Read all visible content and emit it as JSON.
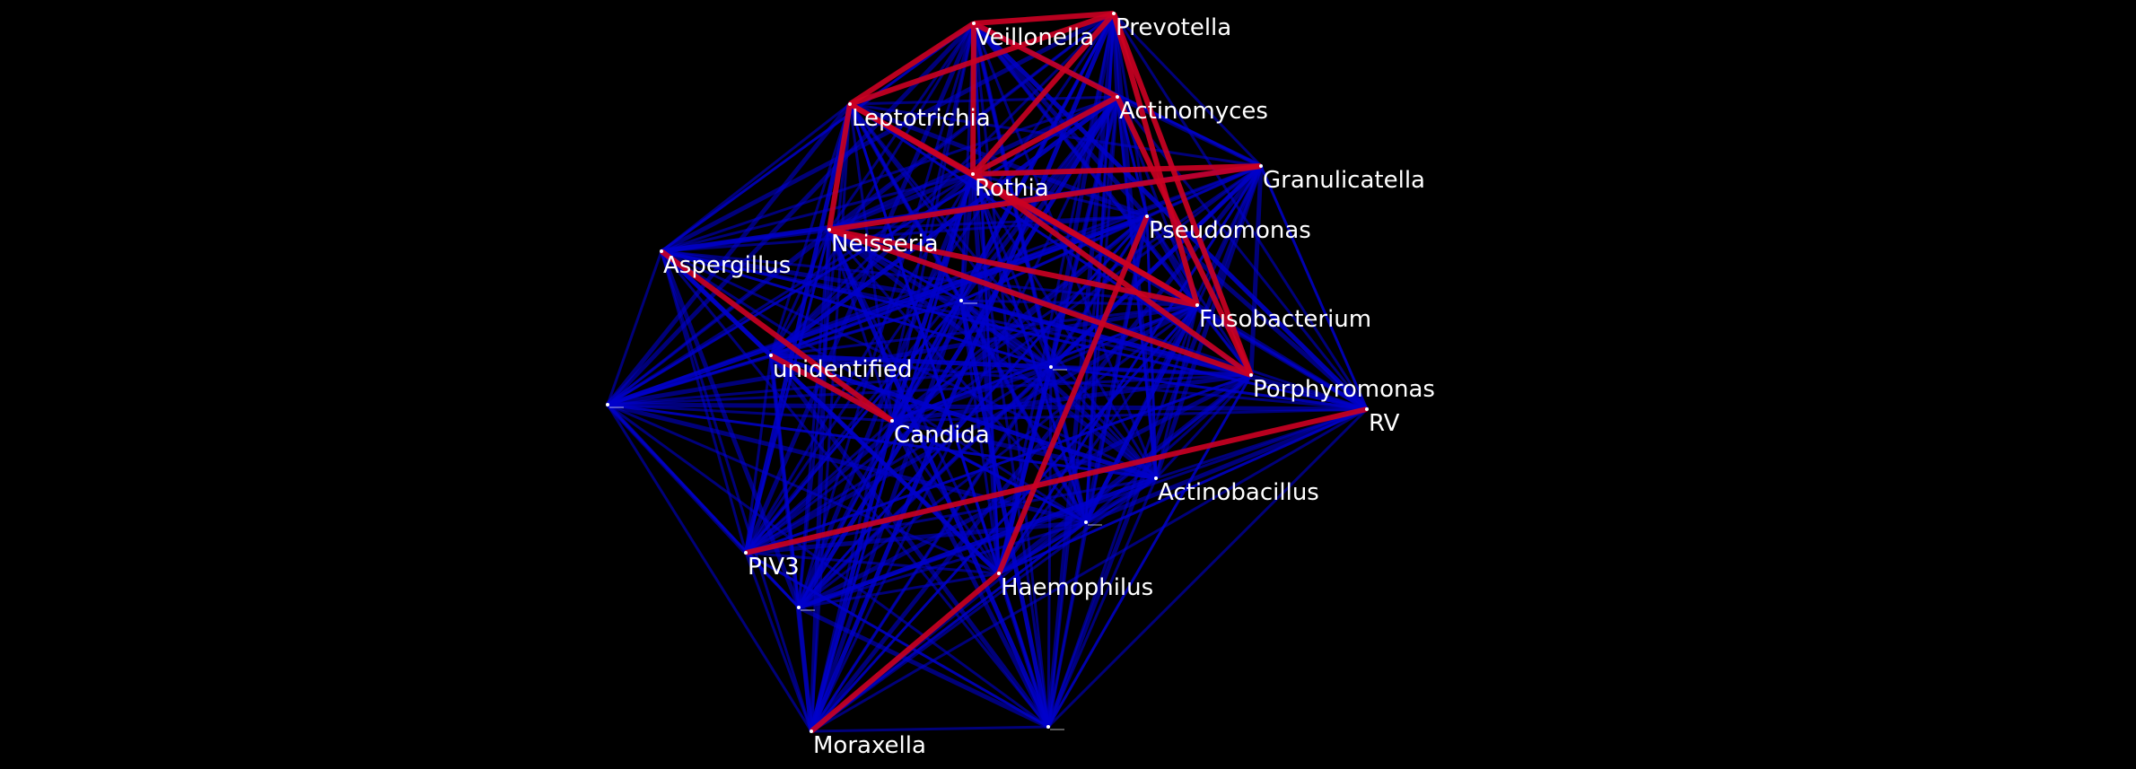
{
  "colors": {
    "background": "#000000",
    "edge_negative": "#cc0022",
    "edge_positive": "#0000cc",
    "node": "#ffffff",
    "label": "#ffffff"
  },
  "nodes": [
    {
      "id": "veillonella",
      "label": "Veillonella"
    },
    {
      "id": "prevotella",
      "label": "Prevotella"
    },
    {
      "id": "actinomyces",
      "label": "Actinomyces"
    },
    {
      "id": "leptotrichia",
      "label": "Leptotrichia"
    },
    {
      "id": "granulicatella",
      "label": "Granulicatella"
    },
    {
      "id": "rothia",
      "label": "Rothia"
    },
    {
      "id": "pseudomonas",
      "label": "Pseudomonas"
    },
    {
      "id": "neisseria",
      "label": "Neisseria"
    },
    {
      "id": "aspergillus",
      "label": "Aspergillus"
    },
    {
      "id": "fusobacterium",
      "label": "Fusobacterium"
    },
    {
      "id": "unidentified",
      "label": "unidentified"
    },
    {
      "id": "porphyromonas",
      "label": "Porphyromonas"
    },
    {
      "id": "rv",
      "label": "RV"
    },
    {
      "id": "candida",
      "label": "Candida"
    },
    {
      "id": "actinobacillus",
      "label": "Actinobacillus"
    },
    {
      "id": "piv3",
      "label": "PIV3"
    },
    {
      "id": "haemophilus",
      "label": "Haemophilus"
    },
    {
      "id": "moraxella",
      "label": "Moraxella"
    },
    {
      "id": "u1",
      "label": ""
    },
    {
      "id": "u2",
      "label": ""
    },
    {
      "id": "u3",
      "label": ""
    },
    {
      "id": "u4",
      "label": ""
    },
    {
      "id": "u5",
      "label": ""
    },
    {
      "id": "u6",
      "label": ""
    }
  ],
  "negative_edges": [
    [
      "veillonella",
      "prevotella"
    ],
    [
      "veillonella",
      "leptotrichia"
    ],
    [
      "veillonella",
      "actinomyces"
    ],
    [
      "prevotella",
      "leptotrichia"
    ],
    [
      "prevotella",
      "rothia"
    ],
    [
      "prevotella",
      "fusobacterium"
    ],
    [
      "prevotella",
      "porphyromonas"
    ],
    [
      "actinomyces",
      "rothia"
    ],
    [
      "leptotrichia",
      "neisseria"
    ],
    [
      "leptotrichia",
      "rothia"
    ],
    [
      "leptotrichia",
      "fusobacterium"
    ],
    [
      "granulicatella",
      "neisseria"
    ],
    [
      "granulicatella",
      "rothia"
    ],
    [
      "rothia",
      "fusobacterium"
    ],
    [
      "rothia",
      "porphyromonas"
    ],
    [
      "neisseria",
      "fusobacterium"
    ],
    [
      "neisseria",
      "porphyromonas"
    ],
    [
      "aspergillus",
      "candida"
    ],
    [
      "unidentified",
      "candida"
    ],
    [
      "pseudomonas",
      "haemophilus"
    ],
    [
      "piv3",
      "rv"
    ],
    [
      "haemophilus",
      "moraxella"
    ],
    [
      "actinomyces",
      "porphyromonas"
    ],
    [
      "veillonella",
      "rothia"
    ]
  ]
}
